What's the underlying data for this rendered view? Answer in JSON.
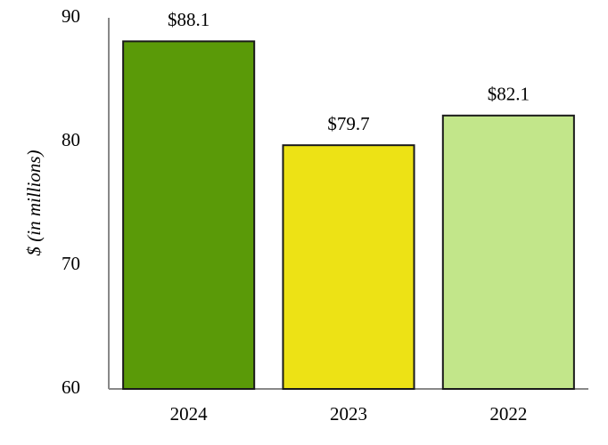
{
  "chart_data": {
    "type": "bar",
    "y_label": "$ (in millions)",
    "categories": [
      "2024",
      "2023",
      "2022"
    ],
    "values": [
      88.1,
      79.7,
      82.1
    ],
    "value_labels": [
      "$88.1",
      "$79.7",
      "$82.1"
    ],
    "colors": [
      "#5a9a08",
      "#ede215",
      "#c2e68a"
    ],
    "ylim": [
      60,
      90
    ],
    "yticks": [
      60,
      70,
      80,
      90
    ],
    "grid": false
  }
}
